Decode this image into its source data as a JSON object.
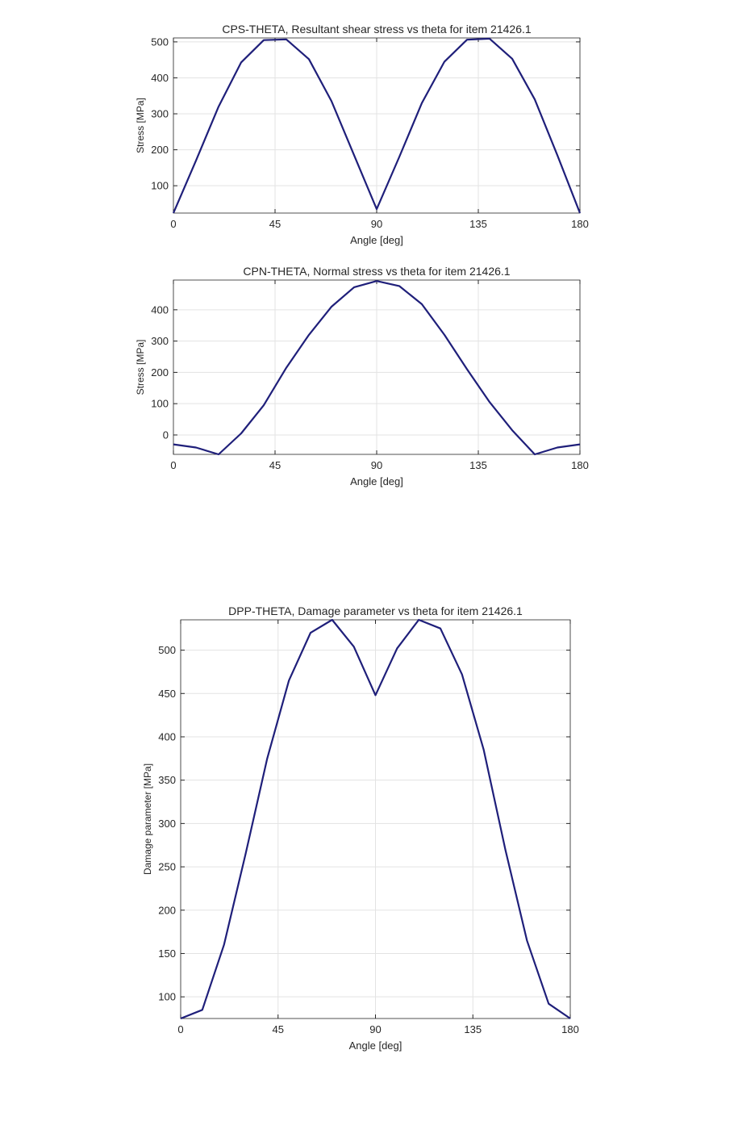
{
  "chart_data": [
    {
      "type": "line",
      "title": "CPS-THETA, Resultant shear stress vs theta for item 21426.1",
      "xlabel": "Angle [deg]",
      "ylabel": "Stress [MPa]",
      "xlim": [
        0,
        180
      ],
      "ylim": [
        24,
        511
      ],
      "xticks": [
        0,
        45,
        90,
        135,
        180
      ],
      "yticks": [
        100,
        200,
        300,
        400,
        500
      ],
      "grid": true,
      "line_color": "#1f1f7a",
      "x": [
        0,
        10,
        20,
        30,
        40,
        50,
        60,
        70,
        80,
        90,
        100,
        110,
        120,
        130,
        140,
        150,
        160,
        170,
        180
      ],
      "series": [
        {
          "name": "Resultant shear stress",
          "values": [
            24,
            170,
            320,
            443,
            505,
            507,
            452,
            335,
            185,
            35,
            180,
            330,
            445,
            506,
            509,
            453,
            340,
            185,
            24
          ]
        }
      ]
    },
    {
      "type": "line",
      "title": "CPN-THETA, Normal stress vs theta for item 21426.1",
      "xlabel": "Angle [deg]",
      "ylabel": "Stress [MPa]",
      "xlim": [
        0,
        180
      ],
      "ylim": [
        -62,
        495
      ],
      "xticks": [
        0,
        45,
        90,
        135,
        180
      ],
      "yticks": [
        0,
        100,
        200,
        300,
        400
      ],
      "grid": true,
      "line_color": "#1f1f7a",
      "x": [
        0,
        10,
        20,
        30,
        40,
        50,
        60,
        70,
        80,
        90,
        100,
        110,
        120,
        130,
        140,
        150,
        160,
        170,
        180
      ],
      "series": [
        {
          "name": "Normal stress",
          "values": [
            -30,
            -40,
            -62,
            5,
            95,
            215,
            320,
            410,
            472,
            492,
            476,
            418,
            320,
            210,
            105,
            15,
            -62,
            -40,
            -30
          ]
        }
      ]
    },
    {
      "type": "line",
      "title": "DPP-THETA, Damage parameter vs theta for item 21426.1",
      "xlabel": "Angle [deg]",
      "ylabel": "Damage parameter [MPa]",
      "xlim": [
        0,
        180
      ],
      "ylim": [
        75,
        535
      ],
      "xticks": [
        0,
        45,
        90,
        135,
        180
      ],
      "yticks": [
        100,
        150,
        200,
        250,
        300,
        350,
        400,
        450,
        500
      ],
      "grid": true,
      "line_color": "#1f1f7a",
      "x": [
        0,
        10,
        20,
        30,
        40,
        50,
        60,
        70,
        80,
        90,
        100,
        110,
        120,
        130,
        140,
        150,
        160,
        170,
        180
      ],
      "series": [
        {
          "name": "Damage parameter",
          "values": [
            75,
            85,
            160,
            265,
            375,
            465,
            520,
            535,
            504,
            448,
            502,
            535,
            525,
            472,
            385,
            270,
            165,
            92,
            75
          ]
        }
      ]
    }
  ]
}
